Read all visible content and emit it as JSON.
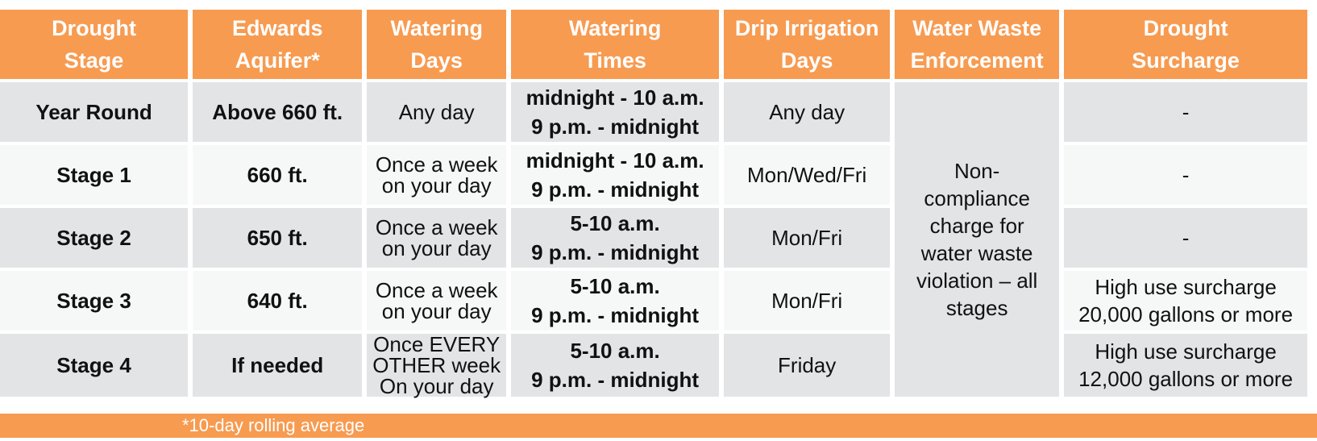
{
  "headers": [
    "Drought\nStage",
    "Edwards\nAquifer*",
    "Watering\nDays",
    "Watering\nTimes",
    "Drip Irrigation\nDays",
    "Water Waste\nEnforcement",
    "Drought\nSurcharge"
  ],
  "rows": [
    {
      "stage": "Year Round",
      "aquifer": "Above 660 ft.",
      "days": "Any day",
      "times": [
        "midnight - 10 a.m.",
        "9 p.m. - midnight"
      ],
      "drip": "Any day",
      "surcharge": [
        "-"
      ]
    },
    {
      "stage": "Stage 1",
      "aquifer": "660 ft.",
      "days": "Once a week\non your day",
      "times": [
        "midnight - 10 a.m.",
        "9 p.m. - midnight"
      ],
      "drip": "Mon/Wed/Fri",
      "surcharge": [
        "-"
      ]
    },
    {
      "stage": "Stage 2",
      "aquifer": "650 ft.",
      "days": "Once a week\non your day",
      "times": [
        "5-10 a.m.",
        "9 p.m. - midnight"
      ],
      "drip": "Mon/Fri",
      "surcharge": [
        "-"
      ]
    },
    {
      "stage": "Stage 3",
      "aquifer": "640 ft.",
      "days": "Once a week\non your day",
      "times": [
        "5-10 a.m.",
        "9 p.m. - midnight"
      ],
      "drip": "Mon/Fri",
      "surcharge": [
        "High use surcharge",
        "20,000 gallons or more"
      ]
    },
    {
      "stage": "Stage 4",
      "aquifer": "If needed",
      "days": "Once EVERY\nOTHER week\nOn your day",
      "times": [
        "5-10 a.m.",
        "9 p.m. - midnight"
      ],
      "drip": "Friday",
      "surcharge": [
        "High use surcharge",
        "12,000 gallons or more"
      ]
    }
  ],
  "enforcement": "Non-\ncompliance\ncharge for\nwater waste\nviolation – all\nstages",
  "footnote": "*10-day rolling average",
  "colors": {
    "header_bg": "#f79b51",
    "header_text": "#ffffff",
    "row_dark": "#e3e4e6",
    "row_light": "#f6f8f8"
  }
}
